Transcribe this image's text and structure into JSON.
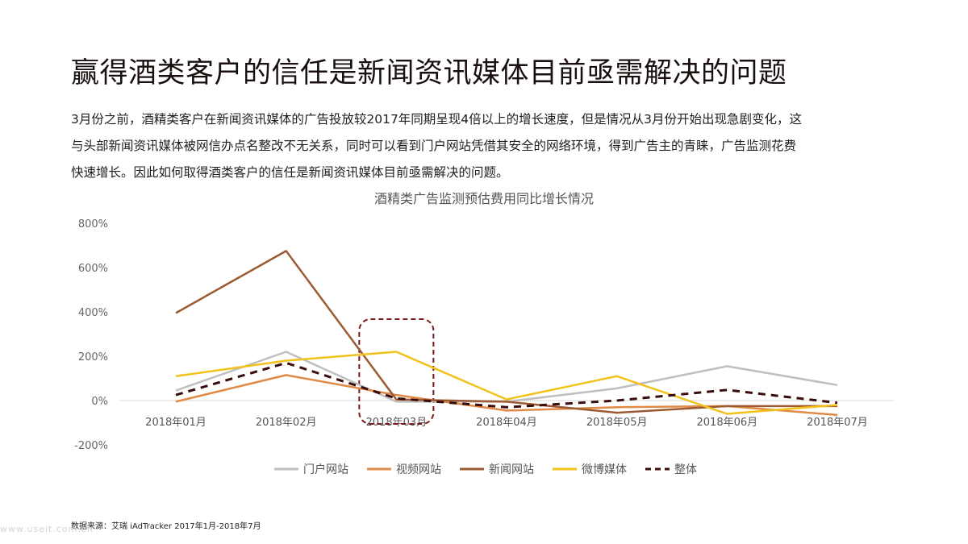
{
  "page": {
    "title": "赢得酒类客户的信任是新闻资讯媒体目前亟需解决的问题",
    "paragraph_lines": [
      "3月份之前，酒精类客户在新闻资讯媒体的广告投放较2017年同期呈现4倍以上的增长速度，但是情况从3月份开始出现急剧变化，这",
      "与头部新闻资讯媒体被网信办点名整改不无关系，同时可以看到门户网站凭借其安全的网络环境，得到广告主的青睐，广告监测花费",
      "快速增长。因此如何取得酒类客户的信任是新闻资讯媒体目前亟需解决的问题。"
    ],
    "source": "数据来源：艾瑞 iAdTracker 2017年1月-2018年7月",
    "watermark": "www.useit.com.cn"
  },
  "chart_data": {
    "type": "line",
    "title": "酒精类广告监测预估费用同比增长情况",
    "categories": [
      "2018年01月",
      "2018年02月",
      "2018年03月",
      "2018年04月",
      "2018年05月",
      "2018年06月",
      "2018年07月"
    ],
    "y_ticks": [
      "800%",
      "600%",
      "400%",
      "200%",
      "0%",
      "-200%"
    ],
    "y_tick_values": [
      800,
      600,
      400,
      200,
      0,
      -200
    ],
    "ylim": [
      -200,
      800
    ],
    "unit": "%",
    "grid": false,
    "legend_position": "bottom",
    "highlight_category": "2018年03月",
    "series": [
      {
        "name": "门户网站",
        "color": "#bfbfbf",
        "dashed": false,
        "values": [
          45,
          220,
          -5,
          -5,
          55,
          155,
          70
        ]
      },
      {
        "name": "视频网站",
        "color": "#e08a45",
        "dashed": false,
        "values": [
          -5,
          115,
          25,
          -45,
          -30,
          -25,
          -65
        ]
      },
      {
        "name": "新闻网站",
        "color": "#9c5a32",
        "dashed": false,
        "values": [
          395,
          675,
          5,
          -5,
          -55,
          -25,
          -25
        ]
      },
      {
        "name": "微博媒体",
        "color": "#f2c21b",
        "dashed": false,
        "values": [
          110,
          180,
          220,
          5,
          110,
          -60,
          -20
        ]
      },
      {
        "name": "整体",
        "color": "#3a0c0c",
        "dashed": true,
        "values": [
          25,
          170,
          10,
          -30,
          0,
          48,
          -10
        ]
      }
    ],
    "highlight_color": "#7b1a1a"
  }
}
